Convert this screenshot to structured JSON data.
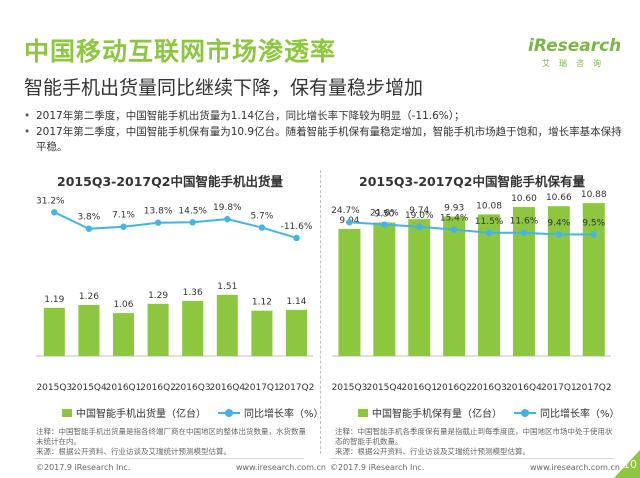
{
  "header": {
    "title": "中国移动互联网市场渗透率",
    "subtitle": "智能手机出货量同比继续下降，保有量稳步增加"
  },
  "logo": {
    "text": "iResearch",
    "sub": "艾瑞咨询"
  },
  "bullets": [
    "2017年第二季度，中国智能手机出货量为1.14亿台，同比增长率下降较为明显（-11.6%）；",
    "2017年第二季度，中国智能手机保有量为10.9亿台。随着智能手机保有量稳定增加，智能手机市场趋于饱和，增长率基本保持平稳。"
  ],
  "colors": {
    "bar": "#8dc63f",
    "line": "#44b3e6",
    "accent": "#8dc63f"
  },
  "chart_data": [
    {
      "type": "bar",
      "title": "2015Q3-2017Q2中国智能手机出货量",
      "categories": [
        "2015Q3",
        "2015Q4",
        "2016Q1",
        "2016Q2",
        "2016Q3",
        "2016Q4",
        "2017Q1",
        "2017Q2"
      ],
      "series": [
        {
          "name": "中国智能手机出货量（亿台）",
          "type": "bar",
          "values": [
            1.19,
            1.26,
            1.06,
            1.29,
            1.36,
            1.51,
            1.12,
            1.14
          ],
          "labels": [
            "1.19",
            "1.26",
            "1.06",
            "1.29",
            "1.36",
            "1.51",
            "1.12",
            "1.14"
          ]
        },
        {
          "name": "同比增长率（%）",
          "type": "line",
          "values": [
            31.2,
            3.8,
            7.1,
            13.8,
            14.5,
            19.8,
            5.7,
            -11.6
          ],
          "labels": [
            "31.2%",
            "3.8%",
            "7.1%",
            "13.8%",
            "14.5%",
            "19.8%",
            "5.7%",
            "-11.6%"
          ]
        }
      ],
      "legend": "bottom"
    },
    {
      "type": "bar",
      "title": "2015Q3-2017Q2中国智能手机保有量",
      "categories": [
        "2015Q3",
        "2015Q4",
        "2016Q1",
        "2016Q2",
        "2016Q3",
        "2016Q4",
        "2017Q1",
        "2017Q2"
      ],
      "series": [
        {
          "name": "中国智能手机保有量（亿台）",
          "type": "bar",
          "values": [
            9.04,
            9.5,
            9.74,
            9.93,
            10.08,
            10.6,
            10.66,
            10.88
          ],
          "labels": [
            "9.04",
            "9.50",
            "9.74",
            "9.93",
            "10.08",
            "10.60",
            "10.66",
            "10.88"
          ]
        },
        {
          "name": "同比增长率（%）",
          "type": "line",
          "values": [
            24.7,
            21.8,
            19.0,
            15.4,
            11.5,
            11.6,
            9.4,
            9.5
          ],
          "labels": [
            "24.7%",
            "21.8%",
            "19.0%",
            "15.4%",
            "11.5%",
            "11.6%",
            "9.4%",
            "9.5%"
          ]
        }
      ],
      "legend": "bottom"
    }
  ],
  "notes": {
    "left": "注释：中国智能手机出货量是指各终端厂商在中国地区的整体出货数量，水货数量未统计在内。\n来源：根据公开资料、行业访谈及艾瑞统计预测模型估算。",
    "right": "注释：中国智能手机各季度保有量是指截止到每季度底，中国地区市场中处于使用状态的智能手机数量。\n来源：根据公开资料、行业访谈及艾瑞统计预测模型估算。"
  },
  "footer": {
    "copyright": "©2017.9 iResearch Inc.",
    "url": "www.iresearch.com.cn",
    "page": "10"
  }
}
